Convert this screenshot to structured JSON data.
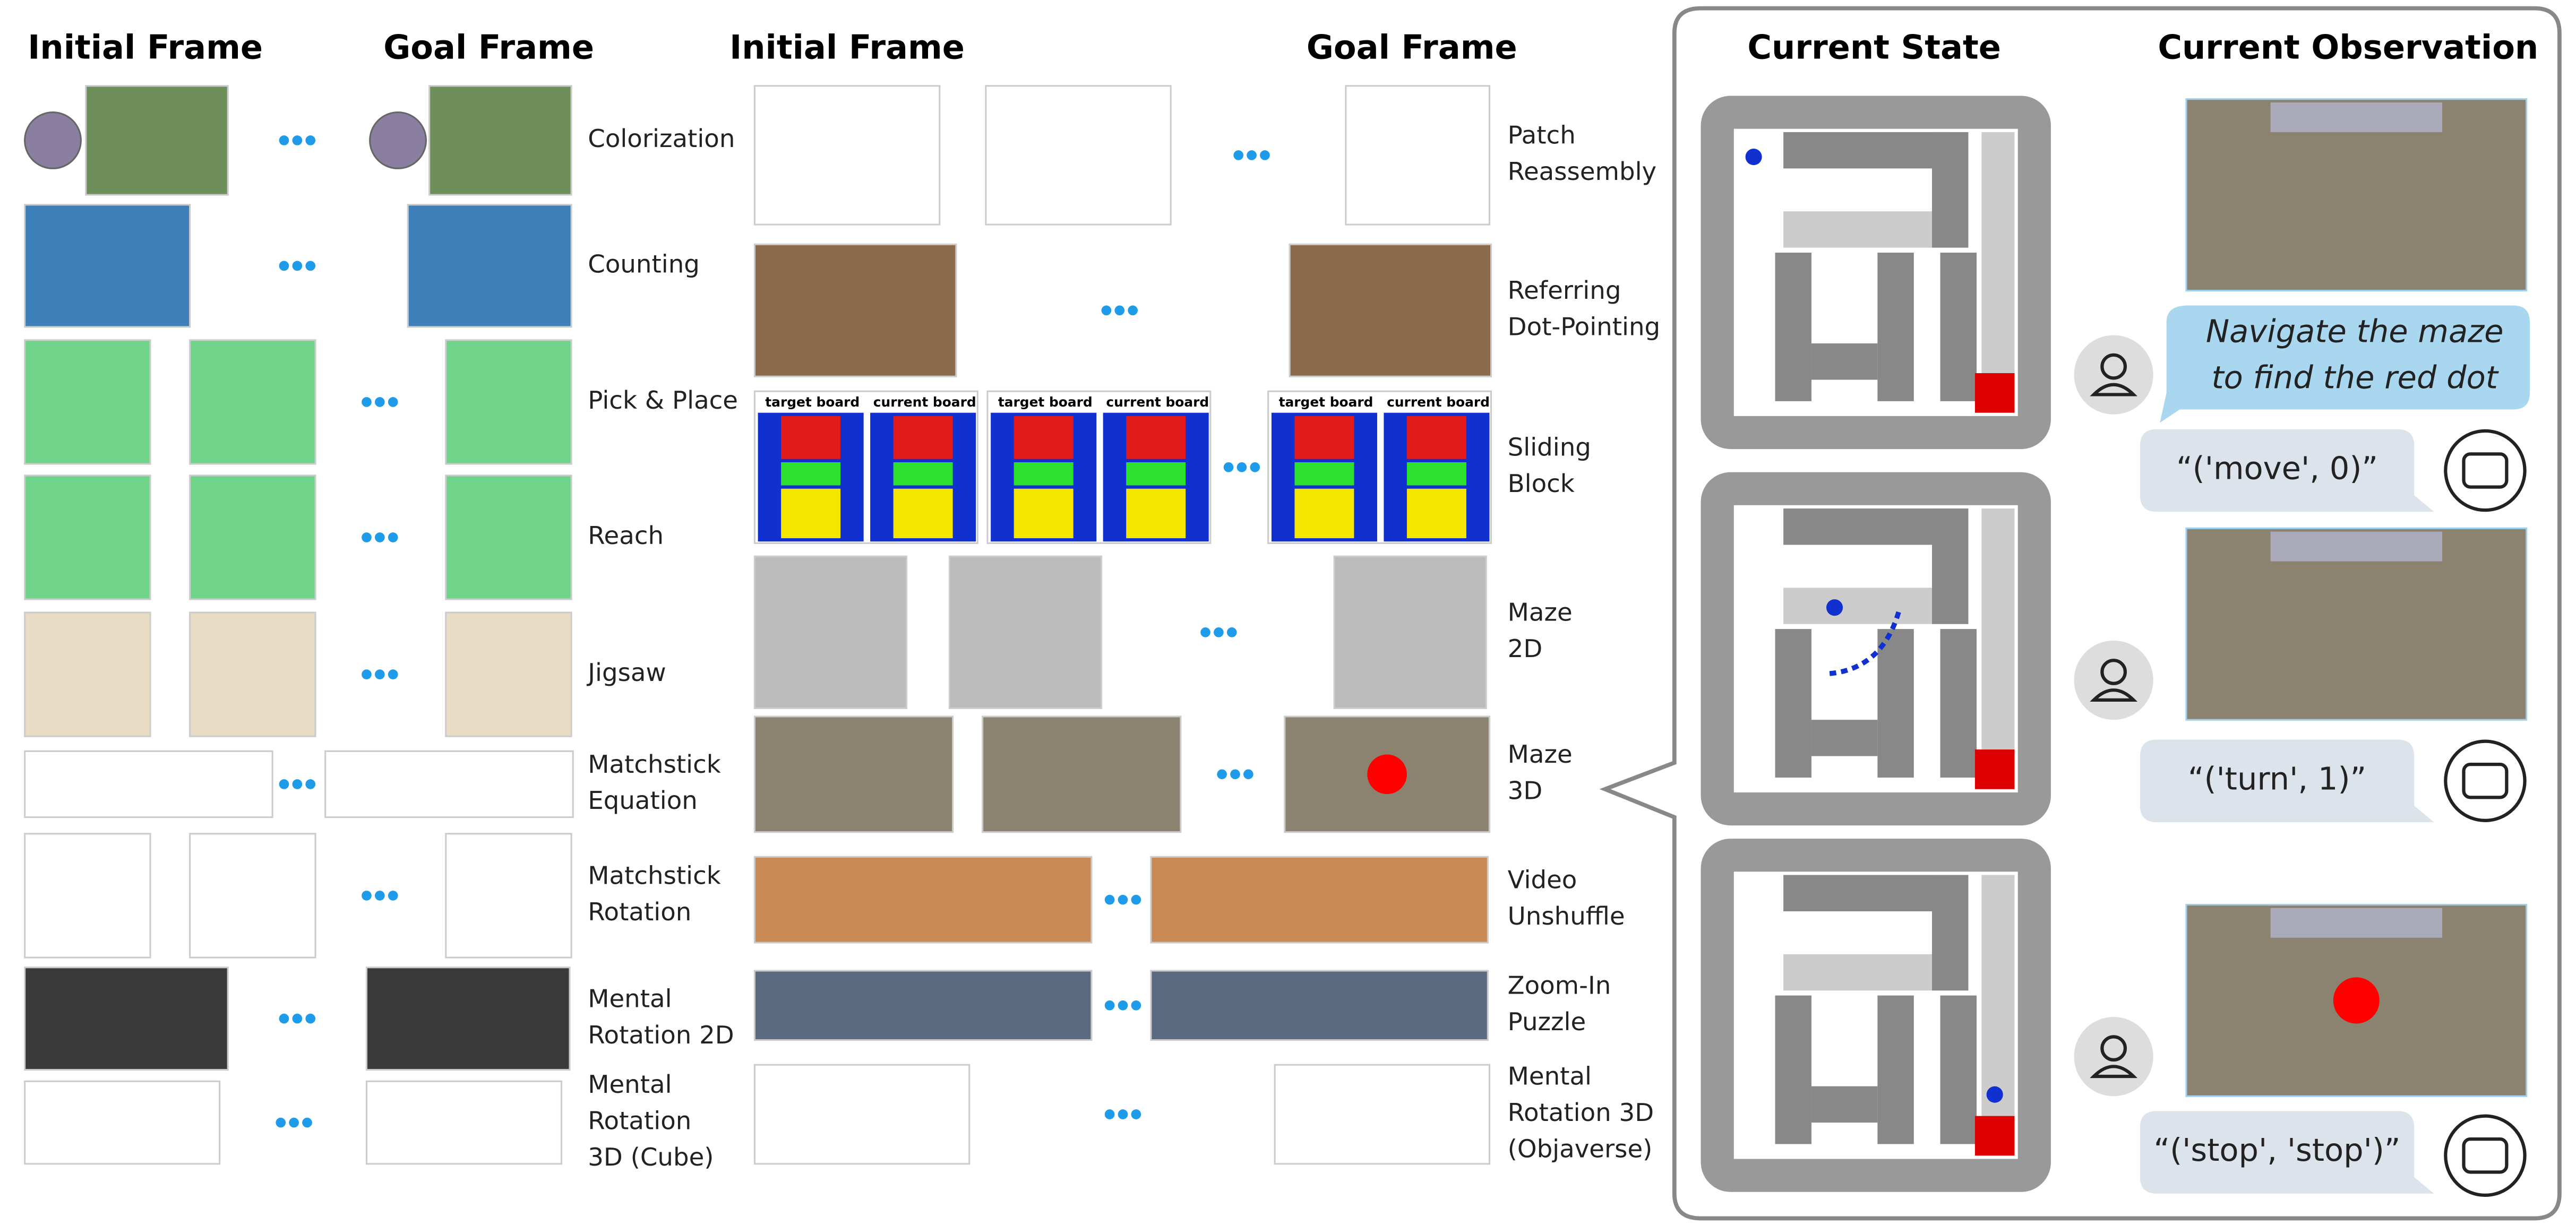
{
  "left_panel": {
    "headers": [
      "Initial Frame",
      "Goal Frame"
    ],
    "tasks": [
      [
        "Colorization"
      ],
      [
        "Counting"
      ],
      [
        "Pick & Place"
      ],
      [
        "Reach"
      ],
      [
        "Jigsaw"
      ],
      [
        "Matchstick",
        "Equation"
      ],
      [
        "Matchstick",
        "Rotation"
      ],
      [
        "Mental",
        "Rotation 2D"
      ],
      [
        "Mental",
        "Rotation",
        "3D (Cube)"
      ]
    ]
  },
  "middle_panel": {
    "headers": [
      "Initial Frame",
      "Goal Frame"
    ],
    "tasks": [
      [
        "Patch",
        "Reassembly"
      ],
      [
        "Referring",
        "Dot-Pointing"
      ],
      [
        "Sliding",
        "Block"
      ],
      [
        "Maze",
        "2D"
      ],
      [
        "Maze",
        "3D"
      ],
      [
        "Video",
        "Unshuffle"
      ],
      [
        "Zoom-In",
        "Puzzle"
      ],
      [
        "Mental",
        "Rotation 3D",
        "(Objaverse)"
      ]
    ],
    "board_labels": [
      "target board",
      "current board"
    ]
  },
  "right_panel": {
    "headers": [
      "Current State",
      "Current Observation"
    ],
    "instruction": [
      "Navigate the maze",
      "to find the red dot"
    ],
    "actions": [
      "“('move', 0)”",
      "“('turn', 1)”",
      "“('stop', 'stop')”"
    ]
  }
}
